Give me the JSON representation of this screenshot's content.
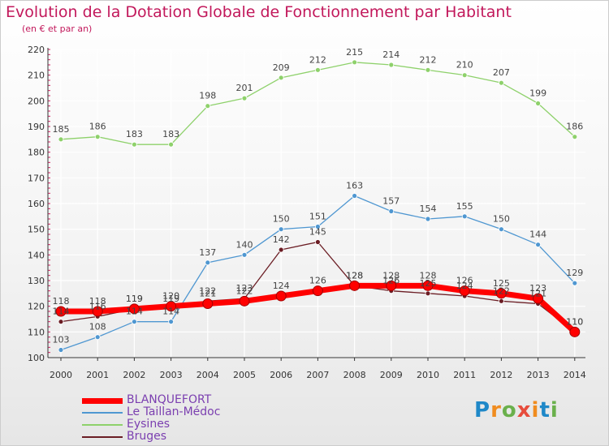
{
  "header": {
    "title": "Evolution de la Dotation Globale de Fonctionnement par Habitant",
    "subtitle": "(en € et par an)"
  },
  "logo": {
    "text": "Proxiti"
  },
  "colors": {
    "title": "#c2185b",
    "axis": "#333333",
    "tick_marks": "#d81b60",
    "grid": "#ffffff",
    "legend_text": "#7b3fb0"
  },
  "chart_data": {
    "type": "line",
    "title": "Evolution de la Dotation Globale de Fonctionnement par Habitant",
    "subtitle": "(en € et par an)",
    "xlabel": "",
    "ylabel": "",
    "x": [
      "2000",
      "2001",
      "2002",
      "2003",
      "2004",
      "2005",
      "2006",
      "2007",
      "2008",
      "2009",
      "2010",
      "2011",
      "2012",
      "2013",
      "2014"
    ],
    "ylim": [
      100,
      220
    ],
    "yticks": [
      100,
      110,
      120,
      130,
      140,
      150,
      160,
      170,
      180,
      190,
      200,
      210,
      220
    ],
    "grid": true,
    "legend_position": "bottom-left",
    "series": [
      {
        "name": "BLANQUEFORT",
        "color": "#ff0000",
        "values": [
          118,
          118,
          119,
          120,
          121,
          122,
          124,
          126,
          128,
          128,
          128,
          126,
          125,
          123,
          110
        ]
      },
      {
        "name": "Le Taillan-Médoc",
        "color": "#4f97d1",
        "values": [
          103,
          108,
          114,
          114,
          137,
          140,
          150,
          151,
          163,
          157,
          154,
          155,
          150,
          144,
          129
        ]
      },
      {
        "name": "Eysines",
        "color": "#8ed16b",
        "values": [
          185,
          186,
          183,
          183,
          198,
          201,
          209,
          212,
          215,
          214,
          212,
          210,
          207,
          199,
          186
        ]
      },
      {
        "name": "Bruges",
        "color": "#6b1d24",
        "values": [
          114,
          116,
          119,
          119,
          122,
          123,
          142,
          145,
          128,
          126,
          125,
          124,
          122,
          121,
          110
        ]
      }
    ]
  }
}
